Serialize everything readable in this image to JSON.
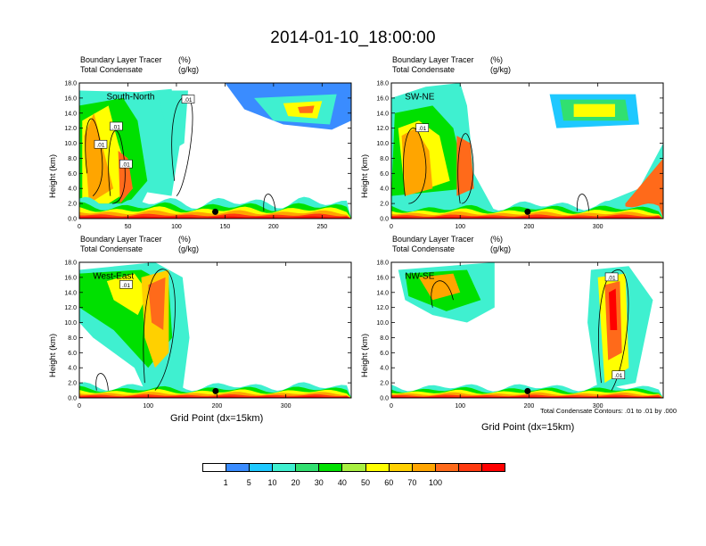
{
  "figure": {
    "title": "2014-01-10_18:00:00",
    "x_axis_title": "Grid Point (dx=15km)",
    "contour_note": "Total Condensate Contours: .01 to .01 by .000"
  },
  "colorbar": {
    "colors": [
      "#ffffff",
      "#3a8cff",
      "#1ec8ff",
      "#3ff0d0",
      "#31e070",
      "#00e000",
      "#a8f040",
      "#ffff00",
      "#ffd000",
      "#ffa500",
      "#ff6a1a",
      "#ff3a10",
      "#ff0000"
    ],
    "labels": [
      "1",
      "5",
      "10",
      "20",
      "30",
      "40",
      "50",
      "60",
      "70",
      "100"
    ]
  },
  "chart_data": [
    {
      "type": "heatmap",
      "section": "South-North",
      "subtitle": "Boundary Layer Tracer",
      "subtitle_unit": "(%)",
      "contour_label": "Total Condensate",
      "contour_unit": "(g/kg)",
      "ylabel": "Height (km)",
      "xlim": [
        0,
        280
      ],
      "xticks": [
        0,
        50,
        100,
        150,
        200,
        250
      ],
      "ylim": [
        0,
        18
      ],
      "yticks": [
        "0.0",
        "2.0",
        "4.0",
        "6.0",
        "8.0",
        "10.0",
        "12.0",
        "14.0",
        "16.0",
        "18.0"
      ],
      "marker_x": 140,
      "contour_labels": [
        ".01",
        ".01",
        ".01",
        ".01"
      ]
    },
    {
      "type": "heatmap",
      "section": "SW-NE",
      "subtitle": "Boundary Layer Tracer",
      "subtitle_unit": "(%)",
      "contour_label": "Total Condensate",
      "contour_unit": "(g/kg)",
      "ylabel": "Height (km)",
      "xlim": [
        0,
        395
      ],
      "xticks": [
        0,
        100,
        200,
        300
      ],
      "ylim": [
        0,
        18
      ],
      "yticks": [
        "0.0",
        "2.0",
        "4.0",
        "6.0",
        "8.0",
        "10.0",
        "12.0",
        "14.0",
        "16.0",
        "18.0"
      ],
      "marker_x": 198,
      "contour_labels": [
        ".01"
      ]
    },
    {
      "type": "heatmap",
      "section": "West-East",
      "subtitle": "Boundary Layer Tracer",
      "subtitle_unit": "(%)",
      "contour_label": "Total Condensate",
      "contour_unit": "(g/kg)",
      "ylabel": "Height (km)",
      "xlim": [
        0,
        395
      ],
      "xticks": [
        0,
        100,
        200,
        300
      ],
      "ylim": [
        0,
        18
      ],
      "yticks": [
        "0.0",
        "2.0",
        "4.0",
        "6.0",
        "8.0",
        "10.0",
        "12.0",
        "14.0",
        "16.0",
        "18.0"
      ],
      "marker_x": 198,
      "contour_labels": [
        ".01"
      ]
    },
    {
      "type": "heatmap",
      "section": "NW-SE",
      "subtitle": "Boundary Layer Tracer",
      "subtitle_unit": "(%)",
      "contour_label": "Total Condensate",
      "contour_unit": "(g/kg)",
      "ylabel": "Height (km)",
      "xlim": [
        0,
        395
      ],
      "xticks": [
        0,
        100,
        200,
        300
      ],
      "ylim": [
        0,
        18
      ],
      "yticks": [
        "0.0",
        "2.0",
        "4.0",
        "6.0",
        "8.0",
        "10.0",
        "12.0",
        "14.0",
        "16.0",
        "18.0"
      ],
      "marker_x": 198,
      "contour_labels": [
        ".01",
        ".01"
      ]
    }
  ]
}
